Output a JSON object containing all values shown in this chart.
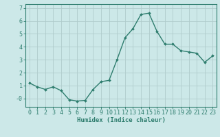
{
  "x": [
    0,
    1,
    2,
    3,
    4,
    5,
    6,
    7,
    8,
    9,
    10,
    11,
    12,
    13,
    14,
    15,
    16,
    17,
    18,
    19,
    20,
    21,
    22,
    23
  ],
  "y": [
    1.2,
    0.9,
    0.7,
    0.9,
    0.6,
    -0.1,
    -0.2,
    -0.15,
    0.7,
    1.3,
    1.4,
    3.0,
    4.7,
    5.4,
    6.5,
    6.6,
    5.2,
    4.2,
    4.2,
    3.7,
    3.6,
    3.5,
    2.8,
    3.3
  ],
  "line_color": "#2e7d6e",
  "marker": "D",
  "marker_size": 2.0,
  "line_width": 1.0,
  "bg_color": "#cce8e8",
  "grid_color": "#b0cccc",
  "xlabel": "Humidex (Indice chaleur)",
  "xlabel_fontsize": 6.5,
  "tick_fontsize": 6.0,
  "yticks": [
    0,
    1,
    2,
    3,
    4,
    5,
    6,
    7
  ],
  "ytick_labels": [
    "-0",
    "1",
    "2",
    "3",
    "4",
    "5",
    "6",
    "7"
  ],
  "ylim": [
    -0.65,
    7.3
  ],
  "xlim": [
    -0.5,
    23.5
  ],
  "xticks": [
    0,
    1,
    2,
    3,
    4,
    5,
    6,
    7,
    8,
    9,
    10,
    11,
    12,
    13,
    14,
    15,
    16,
    17,
    18,
    19,
    20,
    21,
    22,
    23
  ],
  "tick_color": "#2e7d6e",
  "axis_color": "#2e7d6e",
  "spine_color": "#2e7d6e"
}
